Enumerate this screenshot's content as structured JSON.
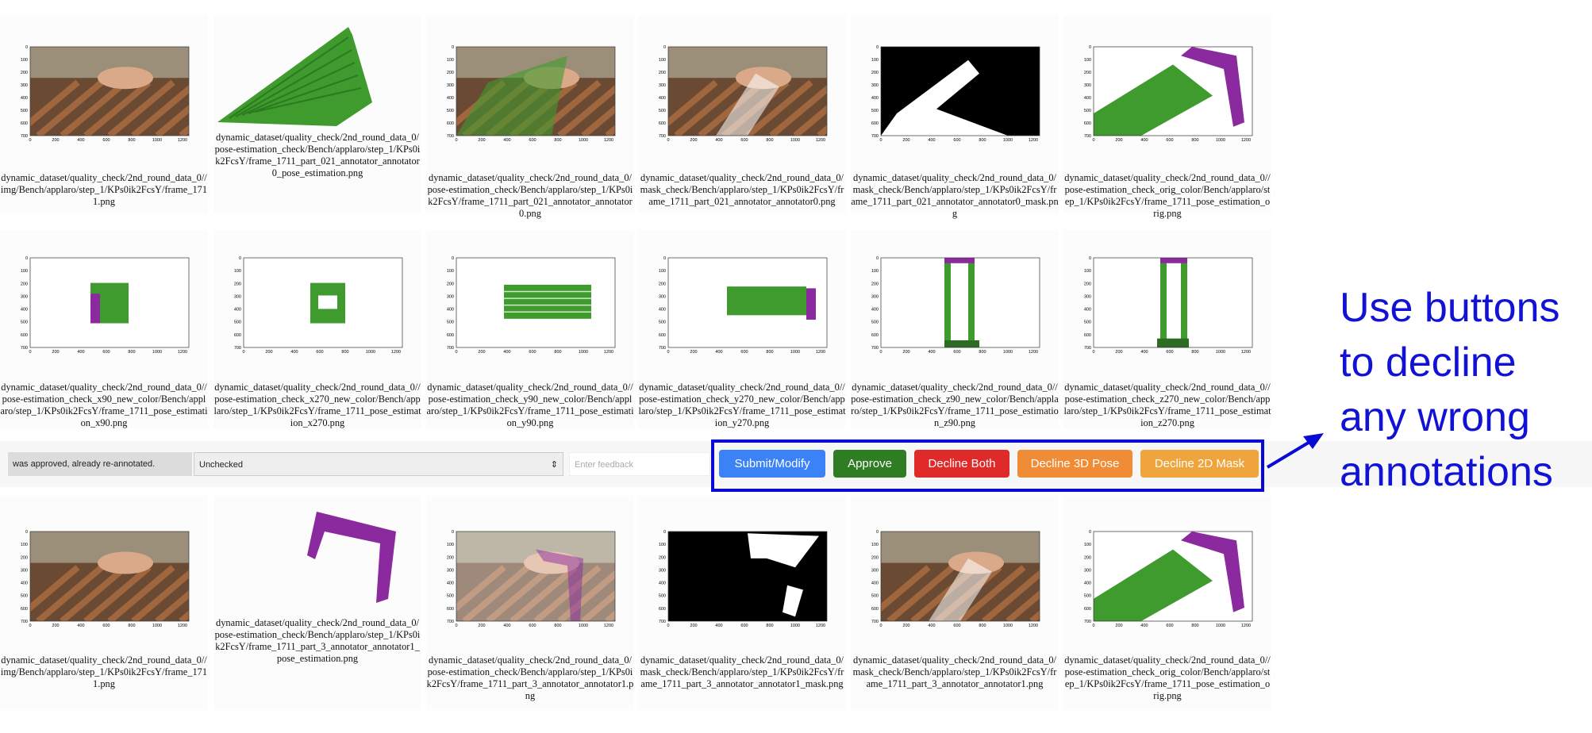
{
  "rows": [
    [
      "dynamic_dataset/quality_check/2nd_round_data_0//img/Bench/applaro/step_1/KPs0ik2FcsY/frame_1711.png",
      "dynamic_dataset/quality_check/2nd_round_data_0/pose-estimation_check/Bench/applaro/step_1/KPs0ik2FcsY/frame_1711_part_021_annotator_annotator0_pose_estimation.png",
      "dynamic_dataset/quality_check/2nd_round_data_0/pose-estimation_check/Bench/applaro/step_1/KPs0ik2FcsY/frame_1711_part_021_annotator_annotator0.png",
      "dynamic_dataset/quality_check/2nd_round_data_0/mask_check/Bench/applaro/step_1/KPs0ik2FcsY/frame_1711_part_021_annotator_annotator0.png",
      "dynamic_dataset/quality_check/2nd_round_data_0/mask_check/Bench/applaro/step_1/KPs0ik2FcsY/frame_1711_part_021_annotator_annotator0_mask.png",
      "dynamic_dataset/quality_check/2nd_round_data_0//pose-estimation_check_orig_color/Bench/applaro/step_1/KPs0ik2FcsY/frame_1711_pose_estimation_orig.png"
    ],
    [
      "dynamic_dataset/quality_check/2nd_round_data_0//pose-estimation_check_x90_new_color/Bench/applaro/step_1/KPs0ik2FcsY/frame_1711_pose_estimation_x90.png",
      "dynamic_dataset/quality_check/2nd_round_data_0//pose-estimation_check_x270_new_color/Bench/applaro/step_1/KPs0ik2FcsY/frame_1711_pose_estimation_x270.png",
      "dynamic_dataset/quality_check/2nd_round_data_0//pose-estimation_check_y90_new_color/Bench/applaro/step_1/KPs0ik2FcsY/frame_1711_pose_estimation_y90.png",
      "dynamic_dataset/quality_check/2nd_round_data_0//pose-estimation_check_y270_new_color/Bench/applaro/step_1/KPs0ik2FcsY/frame_1711_pose_estimation_y270.png",
      "dynamic_dataset/quality_check/2nd_round_data_0//pose-estimation_check_z90_new_color/Bench/applaro/step_1/KPs0ik2FcsY/frame_1711_pose_estimation_z90.png",
      "dynamic_dataset/quality_check/2nd_round_data_0//pose-estimation_check_z270_new_color/Bench/applaro/step_1/KPs0ik2FcsY/frame_1711_pose_estimation_z270.png"
    ],
    [
      "dynamic_dataset/quality_check/2nd_round_data_0//img/Bench/applaro/step_1/KPs0ik2FcsY/frame_1711.png",
      "dynamic_dataset/quality_check/2nd_round_data_0/pose-estimation_check/Bench/applaro/step_1/KPs0ik2FcsY/frame_1711_part_3_annotator_annotator1_pose_estimation.png",
      "dynamic_dataset/quality_check/2nd_round_data_0/pose-estimation_check/Bench/applaro/step_1/KPs0ik2FcsY/frame_1711_part_3_annotator_annotator1.png",
      "dynamic_dataset/quality_check/2nd_round_data_0/mask_check/Bench/applaro/step_1/KPs0ik2FcsY/frame_1711_part_3_annotator_annotator1_mask.png",
      "dynamic_dataset/quality_check/2nd_round_data_0/mask_check/Bench/applaro/step_1/KPs0ik2FcsY/frame_1711_part_3_annotator_annotator1.png",
      "dynamic_dataset/quality_check/2nd_round_data_0//pose-estimation_check_orig_color/Bench/applaro/step_1/KPs0ik2FcsY/frame_1711_pose_estimation_orig.png"
    ]
  ],
  "plot_axis": {
    "x_ticks": [
      "0",
      "200",
      "400",
      "600",
      "800",
      "1000",
      "1200"
    ],
    "y_ticks": [
      "0",
      "100",
      "200",
      "300",
      "400",
      "500",
      "600",
      "700"
    ]
  },
  "controls": {
    "status": "was approved, already re-annotated.",
    "select": "Unchecked",
    "feedback_placeholder": "Enter feedback"
  },
  "buttons": [
    "Submit/Modify",
    "Approve",
    "Decline Both",
    "Decline 3D Pose",
    "Decline 2D Mask"
  ],
  "annotation": [
    "Use buttons",
    "to decline",
    "any wrong",
    "annotations"
  ]
}
